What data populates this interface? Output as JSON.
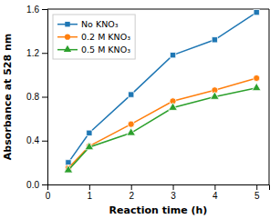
{
  "chart_data": {
    "type": "line",
    "x": [
      0.5,
      1,
      2,
      3,
      4,
      5
    ],
    "series": [
      {
        "name": "No KNO₃",
        "values": [
          0.2,
          0.47,
          0.82,
          1.18,
          1.32,
          1.57
        ],
        "marker": "square"
      },
      {
        "name": "0.2 M KNO₃",
        "values": [
          0.15,
          0.35,
          0.55,
          0.76,
          0.86,
          0.97
        ],
        "marker": "circle"
      },
      {
        "name": "0.5 M KNO₃",
        "values": [
          0.13,
          0.34,
          0.47,
          0.7,
          0.8,
          0.88
        ],
        "marker": "triangle"
      }
    ],
    "x_label": "Reaction time (h)",
    "y_label": "Absorbance at 528 nm",
    "xlim": [
      0.0,
      5.3
    ],
    "ylim": [
      0.0,
      1.6
    ],
    "xticks": [
      0,
      1,
      2,
      3,
      4,
      5
    ],
    "yticks": [
      {
        "value": 0.0,
        "label": "0.0"
      },
      0.4,
      0.8,
      1.2,
      1.6
    ],
    "legend": "upper left",
    "grid": false
  }
}
